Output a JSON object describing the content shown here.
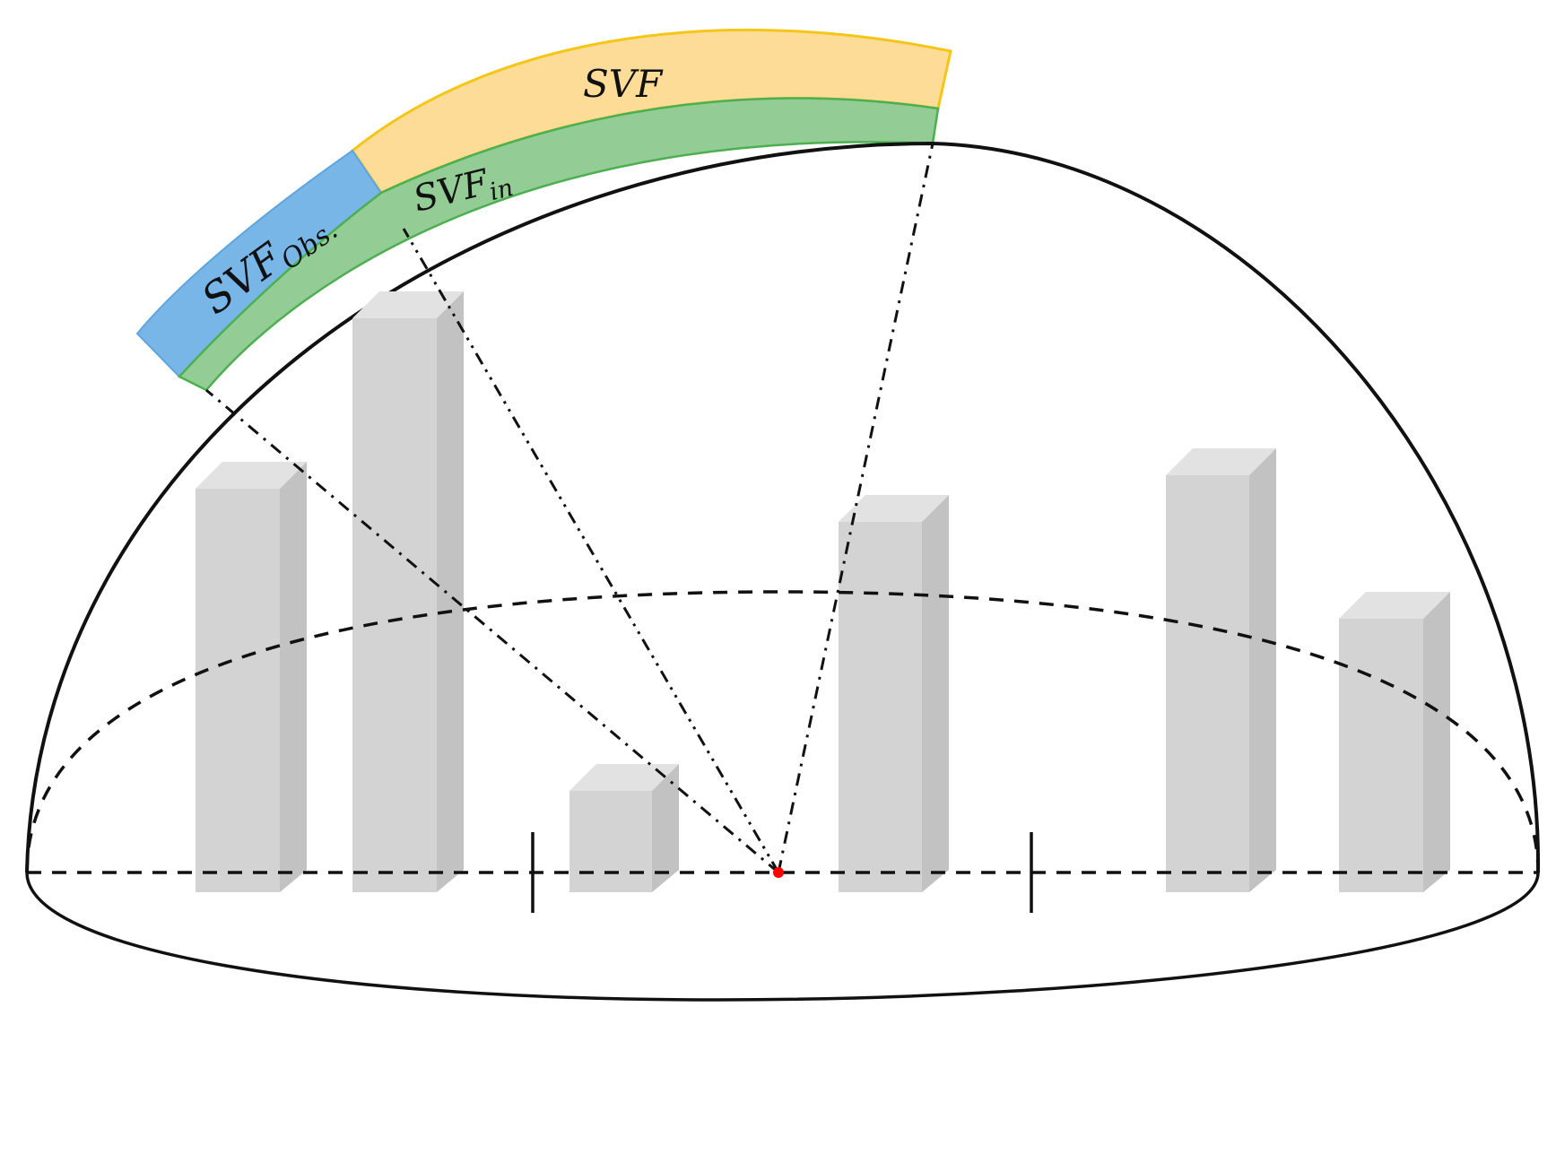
{
  "labels": {
    "svf": "SVF",
    "svf_in_main": "SVF",
    "svf_in_sub": "in",
    "svf_obs_main": "SVF",
    "svf_obs_sub": "Obs."
  },
  "colors": {
    "svf_band": "#fddc97",
    "svf_obs_band": "#78b6e8",
    "svf_in_band": "#93cd95",
    "observer_point": "#ff0000",
    "building_front": "#d3d3d3"
  }
}
